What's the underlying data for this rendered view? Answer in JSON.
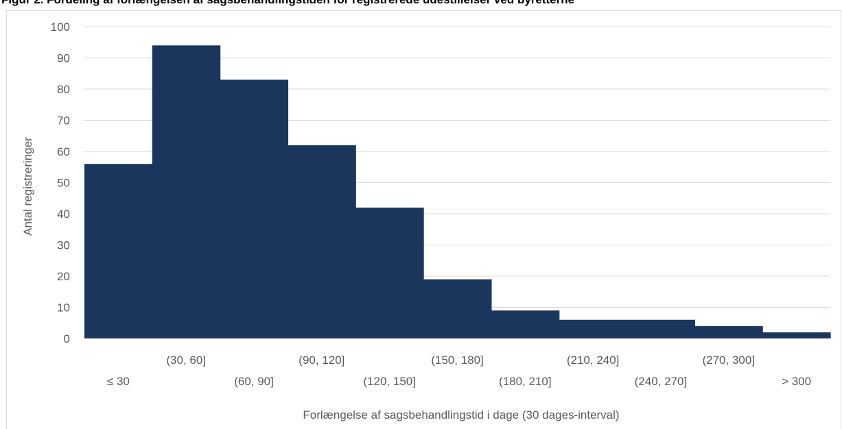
{
  "figure": {
    "title": "Figur 2. Fordeling af forlængelsen af sagsbehandlingstiden for registrerede udestillelser ved byretterne"
  },
  "colors": {
    "bar": "#1b365d",
    "grid": "#d9d9d9",
    "axis": "#bfbfbf",
    "text": "#595959"
  },
  "chart_data": {
    "type": "bar",
    "title": "",
    "xlabel": "Forlængelse af sagsbehandlingstid i dage (30 dages-interval)",
    "ylabel": "Antal registreringer",
    "categories": [
      "≤ 30",
      "(30, 60]",
      "(60, 90]",
      "(90, 120]",
      "(120, 150]",
      "(150, 180]",
      "(180, 210]",
      "(210, 240]",
      "(240, 270]",
      "(270, 300]",
      "> 300"
    ],
    "values": [
      56,
      94,
      83,
      62,
      42,
      19,
      9,
      6,
      6,
      4,
      2
    ],
    "ylim": [
      0,
      100
    ],
    "yticks": [
      0,
      10,
      20,
      30,
      40,
      50,
      60,
      70,
      80,
      90,
      100
    ],
    "grid": true,
    "legend": "none"
  }
}
